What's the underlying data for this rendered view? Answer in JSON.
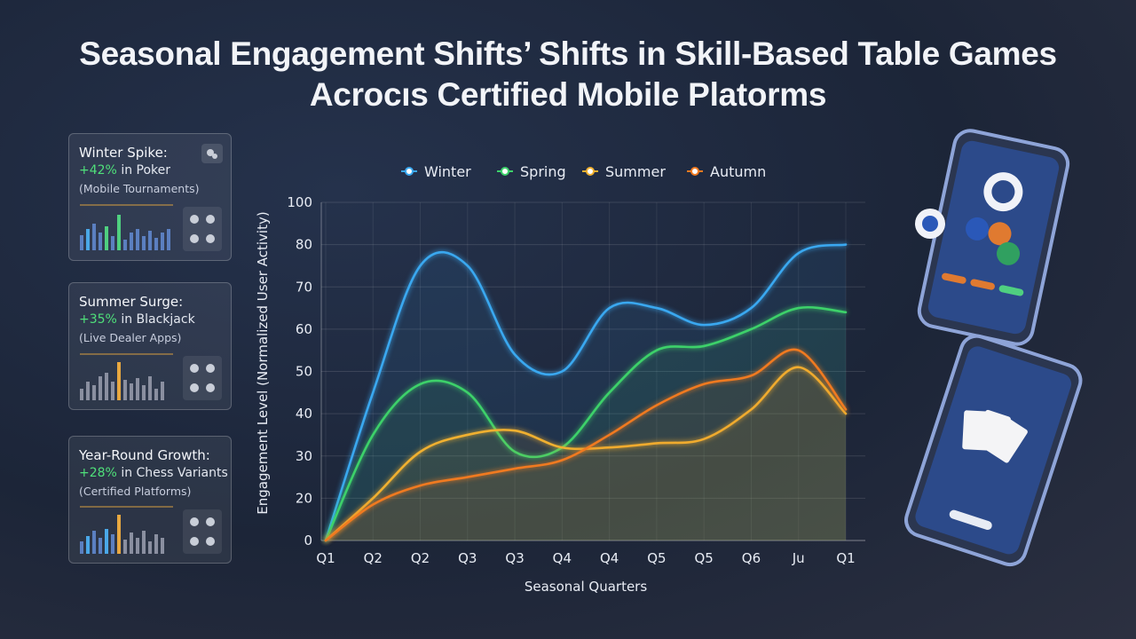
{
  "title": "Seasonal Engagement Shifts’ Shifts in Skill-Based Table Games  Acrocıs Certified Mobile Platorms",
  "cards": [
    {
      "title": "Winter Spike:",
      "highlight": "+42%",
      "text": "in Poker",
      "note": "(Mobile Tournaments)"
    },
    {
      "title": "Summer Surge:",
      "highlight": "+35%",
      "text": "in Blackjack",
      "note": "(Live Dealer Apps)"
    },
    {
      "title": "Year-Round Growth:",
      "highlight": "+28%",
      "text": "in Chess Variants",
      "note": "(Certified Platforms)"
    }
  ],
  "chart_data": {
    "type": "line",
    "x_label": "Seasonal Quarters",
    "y_label": "Engagement Level (Normalized User Activity)",
    "categories": [
      "Q1",
      "Q2",
      "Q2",
      "Q3",
      "Q3",
      "Q4",
      "Q4",
      "Q5",
      "Q5",
      "Q6",
      "Ju",
      "Q1"
    ],
    "series": [
      {
        "name": "Winter",
        "color": "#3aa8f0",
        "values": [
          0,
          45,
          75,
          75,
          54,
          50,
          65,
          65,
          61,
          65,
          78,
          80
        ]
      },
      {
        "name": "Spring",
        "color": "#3dd16a",
        "values": [
          0,
          35,
          47,
          45,
          31,
          32,
          45,
          55,
          56,
          60,
          65,
          64
        ]
      },
      {
        "name": "Summer",
        "color": "#f0b030",
        "values": [
          0,
          20,
          31,
          35,
          36,
          32,
          32,
          33,
          34,
          41,
          51,
          40
        ]
      },
      {
        "name": "Autumn",
        "color": "#f07a20",
        "values": [
          0,
          17,
          23,
          25,
          27,
          29,
          35,
          42,
          47,
          49,
          55,
          41
        ]
      }
    ],
    "ylim": [
      0,
      100
    ],
    "yticks": [
      0,
      20,
      30,
      40,
      50,
      60,
      70,
      80,
      100
    ],
    "grid": true,
    "legend": "top"
  }
}
